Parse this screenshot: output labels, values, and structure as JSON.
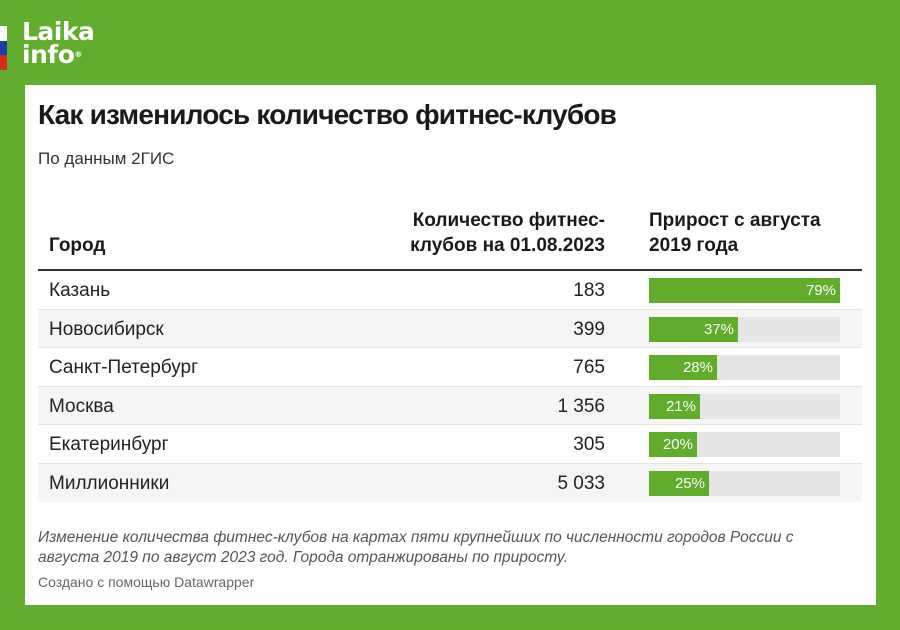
{
  "logo": {
    "line1": "Laika",
    "line2": "info",
    "reg_mark": "®",
    "flag_colors": [
      "#ffffff",
      "#1c3fa8",
      "#d52b1e"
    ]
  },
  "header": {
    "title": "Как изменилось количество фитнес-клубов",
    "subtitle": "По данным 2ГИС"
  },
  "columns": {
    "city": "Город",
    "count": "Количество фитнес-клубов на 01.08.2023",
    "growth": "Прирост с августа 2019 года"
  },
  "colors": {
    "background": "#61ad2e",
    "bar": "#5fad2b",
    "track": "#e5e5e5"
  },
  "chart_data": {
    "type": "table",
    "title": "Как изменилось количество фитнес-клубов",
    "subtitle": "По данным 2ГИС",
    "columns": [
      "Город",
      "Количество фитнес-клубов на 01.08.2023",
      "Прирост с августа 2019 года"
    ],
    "bar_max": 79,
    "rows": [
      {
        "city": "Казань",
        "count": "183",
        "growth": 79,
        "growth_label": "79%"
      },
      {
        "city": "Новосибирск",
        "count": "399",
        "growth": 37,
        "growth_label": "37%"
      },
      {
        "city": "Санкт-Петербург",
        "count": "765",
        "growth": 28,
        "growth_label": "28%"
      },
      {
        "city": "Москва",
        "count": "1 356",
        "growth": 21,
        "growth_label": "21%"
      },
      {
        "city": "Екатеринбург",
        "count": "305",
        "growth": 20,
        "growth_label": "20%"
      },
      {
        "city": "Миллионники",
        "count": "5 033",
        "growth": 25,
        "growth_label": "25%"
      }
    ]
  },
  "footer": {
    "note": "Изменение количества фитнес-клубов на картах пяти крупнейших по численности городов России с августа 2019 по август 2023 год. Города отранжированы по приросту.",
    "credit": "Создано с помощью Datawrapper"
  }
}
